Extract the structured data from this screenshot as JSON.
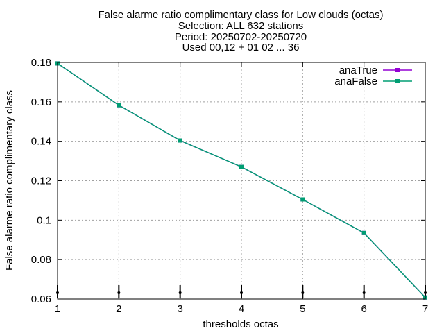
{
  "chart_data": {
    "type": "line",
    "title_lines": [
      "False alarme ratio complimentary class  for Low clouds (octas)",
      "Selection: ALL    632 stations",
      "Period: 20250702-20250720",
      "Used 00,12 + 01 02 ... 36"
    ],
    "xlabel": "thresholds octas",
    "ylabel": "False alarme ratio complimentary class",
    "xlim": [
      1,
      7
    ],
    "ylim": [
      0.06,
      0.18
    ],
    "x_ticks": [
      "1",
      "2",
      "3",
      "4",
      "5",
      "6",
      "7"
    ],
    "y_ticks": [
      "0.06",
      "0.08",
      "0.1",
      "0.12",
      "0.14",
      "0.16",
      "0.18"
    ],
    "grid": true,
    "legend_position": "top-right",
    "x": [
      1,
      2,
      3,
      4,
      5,
      6,
      7
    ],
    "series": [
      {
        "name": "anaTrue",
        "color": "#9400d3",
        "values": [
          0.1795,
          0.1583,
          0.1404,
          0.127,
          0.1105,
          0.0935,
          0.0608
        ]
      },
      {
        "name": "anaFalse",
        "color": "#009e73",
        "values": [
          0.1795,
          0.1583,
          0.1404,
          0.127,
          0.1105,
          0.0935,
          0.0608
        ]
      }
    ]
  }
}
